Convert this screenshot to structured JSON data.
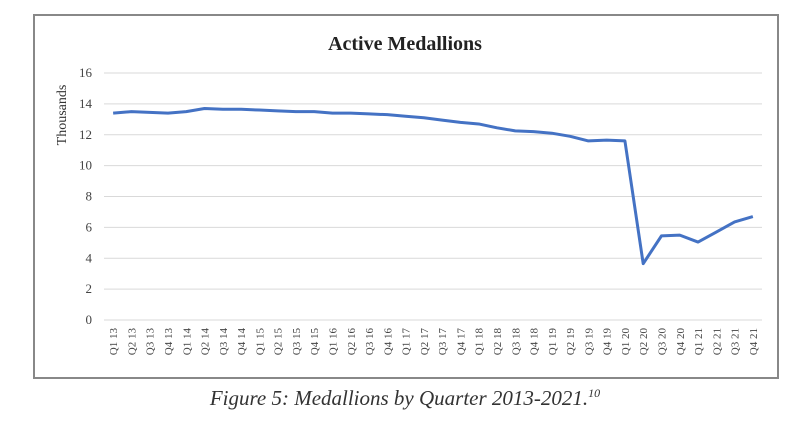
{
  "chart_data": {
    "type": "line",
    "title": "Active Medallions",
    "y_label": "Thousands",
    "categories": [
      "Q1 13",
      "Q2 13",
      "Q3 13",
      "Q4 13",
      "Q1 14",
      "Q2 14",
      "Q3 14",
      "Q4 14",
      "Q1 15",
      "Q2 15",
      "Q3 15",
      "Q4 15",
      "Q1 16",
      "Q2 16",
      "Q3 16",
      "Q4 16",
      "Q1 17",
      "Q2 17",
      "Q3 17",
      "Q4 17",
      "Q1 18",
      "Q2 18",
      "Q3 18",
      "Q4 18",
      "Q1 19",
      "Q2 19",
      "Q3 19",
      "Q4 19",
      "Q1 20",
      "Q2 20",
      "Q3 20",
      "Q4 20",
      "Q1 21",
      "Q2 21",
      "Q3 21",
      "Q4 21"
    ],
    "series": [
      {
        "name": "Active Medallions",
        "color": "#4472c4",
        "values": [
          13.4,
          13.5,
          13.45,
          13.4,
          13.5,
          13.7,
          13.65,
          13.65,
          13.6,
          13.55,
          13.5,
          13.5,
          13.4,
          13.4,
          13.35,
          13.3,
          13.2,
          13.1,
          12.95,
          12.8,
          12.7,
          12.45,
          12.25,
          12.2,
          12.1,
          11.9,
          11.6,
          11.65,
          11.6,
          3.65,
          5.45,
          5.5,
          5.05,
          5.7,
          6.35,
          6.7
        ]
      }
    ],
    "ylim": [
      0,
      16
    ],
    "yticks": [
      0,
      2,
      4,
      6,
      8,
      10,
      12,
      14,
      16
    ],
    "grid": true
  },
  "caption": {
    "text": "Figure 5: Medallions by Quarter 2013-2021.",
    "note": "10"
  }
}
